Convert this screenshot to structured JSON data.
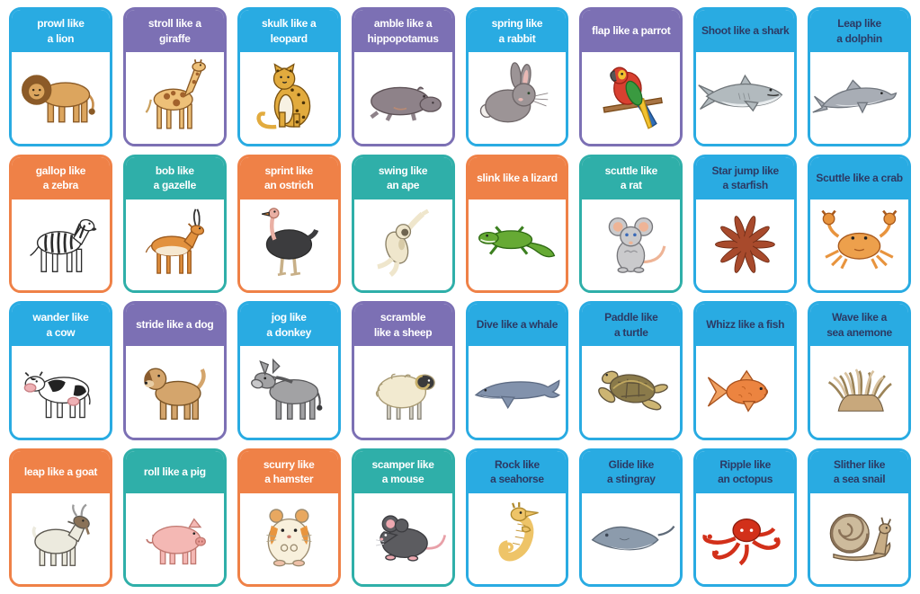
{
  "colors": {
    "cyan": {
      "bg": "#29ABE2",
      "text": "#FFFFFF"
    },
    "purple": {
      "bg": "#7C70B4",
      "text": "#FFFFFF"
    },
    "orange": {
      "bg": "#EF8147",
      "text": "#FFFFFF"
    },
    "teal": {
      "bg": "#2FAFA9",
      "text": "#FFFFFF"
    },
    "sea": {
      "bg": "#29ABE2",
      "text": "#2C3A64"
    }
  },
  "cards": [
    {
      "animal": "lion",
      "style": "cyan",
      "lines": [
        "prowl like",
        "a lion"
      ]
    },
    {
      "animal": "giraffe",
      "style": "purple",
      "lines": [
        "stroll like a",
        "giraffe"
      ]
    },
    {
      "animal": "leopard",
      "style": "cyan",
      "lines": [
        "skulk like a",
        "leopard"
      ]
    },
    {
      "animal": "hippopotamus",
      "style": "purple",
      "lines": [
        "amble like a",
        "hippopotamus"
      ]
    },
    {
      "animal": "rabbit",
      "style": "cyan",
      "lines": [
        "spring like",
        "a rabbit"
      ]
    },
    {
      "animal": "parrot",
      "style": "purple",
      "lines": [
        "flap like a parrot"
      ]
    },
    {
      "animal": "shark",
      "style": "sea",
      "lines": [
        "Shoot like a shark"
      ]
    },
    {
      "animal": "dolphin",
      "style": "sea",
      "lines": [
        "Leap like",
        "a dolphin"
      ]
    },
    {
      "animal": "zebra",
      "style": "orange",
      "lines": [
        "gallop like",
        "a zebra"
      ]
    },
    {
      "animal": "gazelle",
      "style": "teal",
      "lines": [
        "bob like",
        "a gazelle"
      ]
    },
    {
      "animal": "ostrich",
      "style": "orange",
      "lines": [
        "sprint like",
        "an ostrich"
      ]
    },
    {
      "animal": "ape",
      "style": "teal",
      "lines": [
        "swing like",
        "an ape"
      ]
    },
    {
      "animal": "lizard",
      "style": "orange",
      "lines": [
        "slink like a lizard"
      ]
    },
    {
      "animal": "rat",
      "style": "teal",
      "lines": [
        "scuttle like",
        "a rat"
      ]
    },
    {
      "animal": "starfish",
      "style": "sea",
      "lines": [
        "Star jump like",
        "a starfish"
      ]
    },
    {
      "animal": "crab",
      "style": "sea",
      "lines": [
        "Scuttle like a crab"
      ]
    },
    {
      "animal": "cow",
      "style": "cyan",
      "lines": [
        "wander like",
        "a cow"
      ]
    },
    {
      "animal": "dog",
      "style": "purple",
      "lines": [
        "stride like a dog"
      ]
    },
    {
      "animal": "donkey",
      "style": "cyan",
      "lines": [
        "jog like",
        "a donkey"
      ]
    },
    {
      "animal": "sheep",
      "style": "purple",
      "lines": [
        "scramble",
        "like a sheep"
      ]
    },
    {
      "animal": "whale",
      "style": "sea",
      "lines": [
        "Dive like a whale"
      ]
    },
    {
      "animal": "turtle",
      "style": "sea",
      "lines": [
        "Paddle like",
        "a turtle"
      ]
    },
    {
      "animal": "fish",
      "style": "sea",
      "lines": [
        "Whizz like a fish"
      ]
    },
    {
      "animal": "sea-anemone",
      "style": "sea",
      "lines": [
        "Wave like a",
        "sea anemone"
      ]
    },
    {
      "animal": "goat",
      "style": "orange",
      "lines": [
        "leap like a goat"
      ]
    },
    {
      "animal": "pig",
      "style": "teal",
      "lines": [
        "roll like a pig"
      ]
    },
    {
      "animal": "hamster",
      "style": "orange",
      "lines": [
        "scurry like",
        "a hamster"
      ]
    },
    {
      "animal": "mouse",
      "style": "teal",
      "lines": [
        "scamper like",
        "a mouse"
      ]
    },
    {
      "animal": "seahorse",
      "style": "sea",
      "lines": [
        "Rock like",
        "a seahorse"
      ]
    },
    {
      "animal": "stingray",
      "style": "sea",
      "lines": [
        "Glide like",
        "a stingray"
      ]
    },
    {
      "animal": "octopus",
      "style": "sea",
      "lines": [
        "Ripple like",
        "an octopus"
      ]
    },
    {
      "animal": "sea-snail",
      "style": "sea",
      "lines": [
        "Slither like",
        "a sea snail"
      ]
    }
  ]
}
